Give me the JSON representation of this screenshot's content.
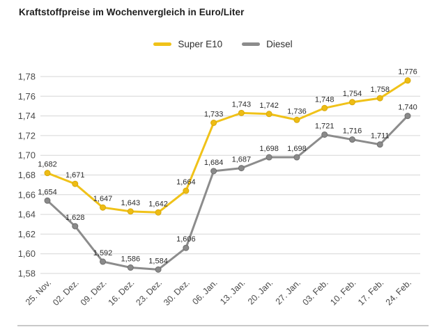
{
  "chart_data": {
    "type": "line",
    "title": "Kraftstoffpreise im Wochenvergleich in Euro/Liter",
    "xlabel": "",
    "ylabel": "",
    "unit": "Euro/Liter",
    "grid": true,
    "legend_position": "top-center",
    "ylim": [
      1.58,
      1.78
    ],
    "ytick_step": 0.02,
    "yticks": [
      {
        "value": 1.78,
        "label": "1,78"
      },
      {
        "value": 1.76,
        "label": "1,76"
      },
      {
        "value": 1.74,
        "label": "1,74"
      },
      {
        "value": 1.72,
        "label": "1,72"
      },
      {
        "value": 1.7,
        "label": "1,70"
      },
      {
        "value": 1.68,
        "label": "1,68"
      },
      {
        "value": 1.66,
        "label": "1,66"
      },
      {
        "value": 1.64,
        "label": "1,64"
      },
      {
        "value": 1.62,
        "label": "1,62"
      },
      {
        "value": 1.6,
        "label": "1,60"
      },
      {
        "value": 1.58,
        "label": "1,58"
      }
    ],
    "categories": [
      "25. Nov.",
      "02. Dez.",
      "09. Dez.",
      "16. Dez.",
      "23. Dez.",
      "30. Dez.",
      "06. Jan.",
      "13. Jan.",
      "20. Jan.",
      "27. Jan.",
      "03. Feb.",
      "10. Feb.",
      "17. Feb.",
      "24. Feb."
    ],
    "series": [
      {
        "name": "Super E10",
        "color": "#f0c219",
        "marker_color": "#eebc14",
        "marker_stroke": "#d8a90a",
        "values": [
          1.682,
          1.671,
          1.647,
          1.643,
          1.642,
          1.664,
          1.733,
          1.743,
          1.742,
          1.736,
          1.748,
          1.754,
          1.758,
          1.776
        ],
        "labels": [
          "1,682",
          "1,671",
          "1,647",
          "1,643",
          "1,642",
          "1,664",
          "1,733",
          "1,743",
          "1,742",
          "1,736",
          "1,748",
          "1,754",
          "1,758",
          "1,776"
        ]
      },
      {
        "name": "Diesel",
        "color": "#8c8c8c",
        "marker_color": "#8a8a8a",
        "marker_stroke": "#6f6f6f",
        "values": [
          1.654,
          1.628,
          1.592,
          1.586,
          1.584,
          1.606,
          1.684,
          1.687,
          1.698,
          1.698,
          1.721,
          1.716,
          1.711,
          1.74
        ],
        "labels": [
          "1,654",
          "1,628",
          "1,592",
          "1,586",
          "1,584",
          "1,606",
          "1,684",
          "1,687",
          "1,698",
          "1,698",
          "1,721",
          "1,716",
          "1,711",
          "1,740"
        ]
      }
    ],
    "style": {
      "grid_color": "#d6d6d6",
      "tick_label_color": "#4a4a4a",
      "data_label_color": "#2b2b2b",
      "divider_color": "#c9c9c9"
    }
  }
}
